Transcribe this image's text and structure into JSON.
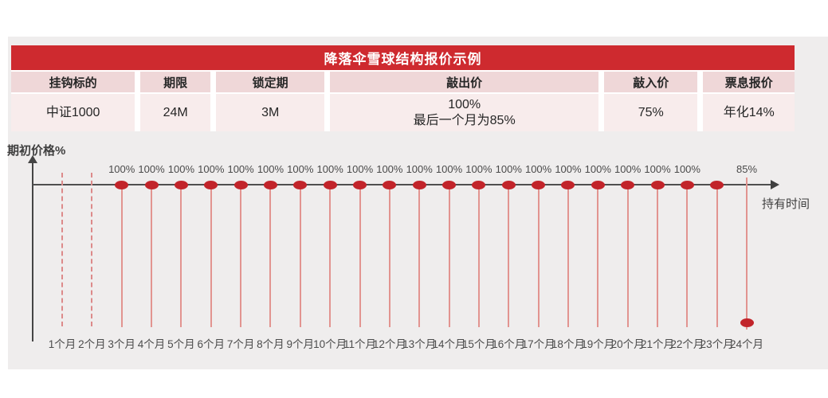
{
  "colors": {
    "title_bar": "#ce2a2f",
    "header_cell": "#efd7d8",
    "value_cell": "#f8ecec",
    "dot": "#c2242a",
    "guide_line": "#e29490",
    "panel_bg": "#efeded"
  },
  "table": {
    "title": "降落伞雪球结构报价示例",
    "columns": [
      "挂钩标的",
      "期限",
      "锁定期",
      "敲出价",
      "敲入价",
      "票息报价"
    ],
    "values": [
      [
        "中证1000"
      ],
      [
        "24M"
      ],
      [
        "3M"
      ],
      [
        "100%",
        "最后一个月为85%"
      ],
      [
        "75%"
      ],
      [
        "年化14%"
      ]
    ]
  },
  "chart_data": {
    "type": "scatter",
    "title": "",
    "xlabel": "持有时间",
    "ylabel": "期初价格%",
    "legend": [],
    "grid": false,
    "description": "敲出价观察点：第3-23个月敲出价为期初价格的100%，第24个月降为85%；第1-2个月为锁定期（虚线，无观察点）",
    "months": [
      {
        "label": "1个月",
        "level": null,
        "level_label": ""
      },
      {
        "label": "2个月",
        "level": null,
        "level_label": ""
      },
      {
        "label": "3个月",
        "level": 100,
        "level_label": "100%"
      },
      {
        "label": "4个月",
        "level": 100,
        "level_label": "100%"
      },
      {
        "label": "5个月",
        "level": 100,
        "level_label": "100%"
      },
      {
        "label": "6个月",
        "level": 100,
        "level_label": "100%"
      },
      {
        "label": "7个月",
        "level": 100,
        "level_label": "100%"
      },
      {
        "label": "8个月",
        "level": 100,
        "level_label": "100%"
      },
      {
        "label": "9个月",
        "level": 100,
        "level_label": "100%"
      },
      {
        "label": "10个月",
        "level": 100,
        "level_label": "100%"
      },
      {
        "label": "11个月",
        "level": 100,
        "level_label": "100%"
      },
      {
        "label": "12个月",
        "level": 100,
        "level_label": "100%"
      },
      {
        "label": "13个月",
        "level": 100,
        "level_label": "100%"
      },
      {
        "label": "14个月",
        "level": 100,
        "level_label": "100%"
      },
      {
        "label": "15个月",
        "level": 100,
        "level_label": "100%"
      },
      {
        "label": "16个月",
        "level": 100,
        "level_label": "100%"
      },
      {
        "label": "17个月",
        "level": 100,
        "level_label": "100%"
      },
      {
        "label": "18个月",
        "level": 100,
        "level_label": "100%"
      },
      {
        "label": "19个月",
        "level": 100,
        "level_label": "100%"
      },
      {
        "label": "20个月",
        "level": 100,
        "level_label": "100%"
      },
      {
        "label": "21个月",
        "level": 100,
        "level_label": "100%"
      },
      {
        "label": "22个月",
        "level": 100,
        "level_label": "100%"
      },
      {
        "label": "23个月",
        "level": 100,
        "level_label": ""
      },
      {
        "label": "24个月",
        "level": 85,
        "level_label": "85%"
      }
    ]
  }
}
